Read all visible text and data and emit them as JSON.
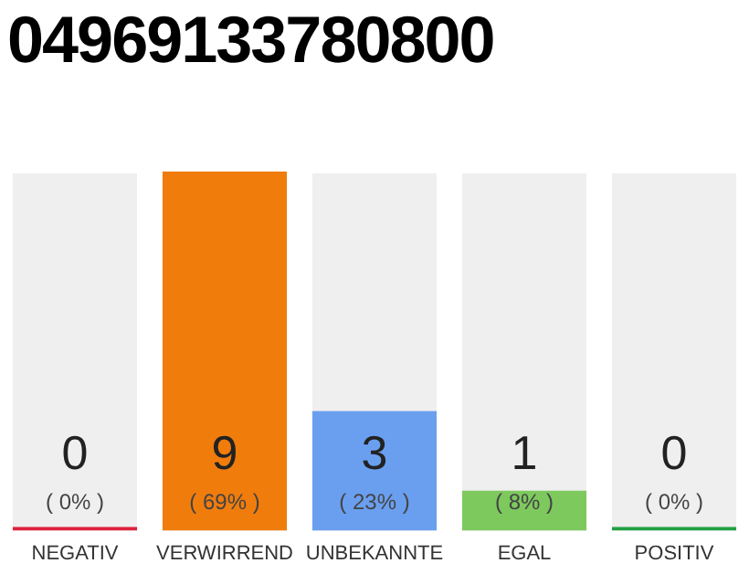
{
  "chart_data": {
    "type": "bar",
    "title": "04969133780800",
    "categories": [
      "NEGATIV",
      "VERWIRREND",
      "UNBEKANNTE",
      "EGAL",
      "POSITIV"
    ],
    "values": [
      0,
      9,
      3,
      1,
      0
    ],
    "colors": [
      "#e0203c",
      "#f07c0c",
      "#6a9ff0",
      "#7dc95e",
      "#20a040"
    ],
    "value_labels": [
      "0\n( 0% )",
      "9\n( 69% )",
      "3\n( 23% )",
      "1\n( 8% )",
      "0\n( 0% )"
    ],
    "grid": false,
    "legend": false
  }
}
